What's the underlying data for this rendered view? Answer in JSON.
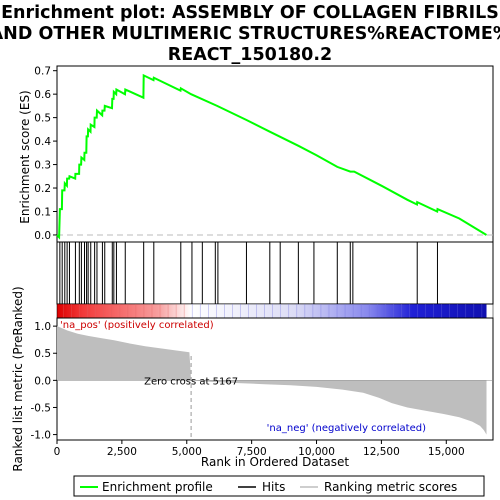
{
  "chart_data": {
    "type": "line",
    "title_lines": [
      "Enrichment plot: ASSEMBLY OF COLLAGEN FIBRILS",
      "AND OTHER MULTIMERIC STRUCTURES%REACTOME%",
      "REACT_150180.2"
    ],
    "xlabel": "Rank in Ordered Dataset",
    "xlim": [
      0,
      16800
    ],
    "x_ticks": [
      0,
      2500,
      5000,
      7500,
      10000,
      12500,
      15000
    ],
    "x_tick_labels": [
      "0",
      "2,500",
      "5,000",
      "7,500",
      "10,000",
      "12,500",
      "15,000"
    ],
    "top_panel": {
      "ylabel": "Enrichment score (ES)",
      "ylim": [
        -0.03,
        0.72
      ],
      "y_ticks": [
        0.0,
        0.1,
        0.2,
        0.3,
        0.4,
        0.5,
        0.6,
        0.7
      ],
      "y_tick_labels": [
        "0.0",
        "0.1",
        "0.2",
        "0.3",
        "0.4",
        "0.5",
        "0.6",
        "0.7"
      ],
      "series_name": "Enrichment profile",
      "series_color": "#00ff00",
      "es_points": [
        [
          0,
          0.0
        ],
        [
          80,
          -0.01
        ],
        [
          110,
          0.11
        ],
        [
          190,
          0.11
        ],
        [
          200,
          0.19
        ],
        [
          290,
          0.19
        ],
        [
          300,
          0.22
        ],
        [
          380,
          0.21
        ],
        [
          390,
          0.24
        ],
        [
          470,
          0.24
        ],
        [
          480,
          0.25
        ],
        [
          700,
          0.24
        ],
        [
          710,
          0.26
        ],
        [
          850,
          0.26
        ],
        [
          860,
          0.3
        ],
        [
          930,
          0.3
        ],
        [
          940,
          0.33
        ],
        [
          1050,
          0.32
        ],
        [
          1060,
          0.35
        ],
        [
          1130,
          0.35
        ],
        [
          1140,
          0.42
        ],
        [
          1190,
          0.42
        ],
        [
          1200,
          0.45
        ],
        [
          1290,
          0.44
        ],
        [
          1300,
          0.47
        ],
        [
          1440,
          0.46
        ],
        [
          1450,
          0.5
        ],
        [
          1530,
          0.5
        ],
        [
          1540,
          0.53
        ],
        [
          1740,
          0.51
        ],
        [
          1750,
          0.53
        ],
        [
          1830,
          0.53
        ],
        [
          1840,
          0.55
        ],
        [
          2120,
          0.54
        ],
        [
          2130,
          0.58
        ],
        [
          2180,
          0.58
        ],
        [
          2190,
          0.61
        ],
        [
          2280,
          0.6
        ],
        [
          2290,
          0.62
        ],
        [
          2620,
          0.6
        ],
        [
          2630,
          0.62
        ],
        [
          3330,
          0.585
        ],
        [
          3340,
          0.68
        ],
        [
          3720,
          0.66
        ],
        [
          3730,
          0.67
        ],
        [
          4760,
          0.615
        ],
        [
          4770,
          0.625
        ],
        [
          5167,
          0.6
        ],
        [
          6170,
          0.55
        ],
        [
          7300,
          0.49
        ],
        [
          8200,
          0.44
        ],
        [
          9300,
          0.38
        ],
        [
          10000,
          0.34
        ],
        [
          10800,
          0.29
        ],
        [
          11300,
          0.27
        ],
        [
          11450,
          0.27
        ],
        [
          12500,
          0.21
        ],
        [
          13500,
          0.15
        ],
        [
          13870,
          0.13
        ],
        [
          13880,
          0.14
        ],
        [
          14650,
          0.1
        ],
        [
          14660,
          0.11
        ],
        [
          15500,
          0.07
        ],
        [
          16550,
          0.0
        ]
      ],
      "hit_ranks": [
        110,
        200,
        300,
        390,
        480,
        710,
        860,
        940,
        1060,
        1140,
        1200,
        1300,
        1450,
        1540,
        1750,
        1840,
        2130,
        2190,
        2290,
        2630,
        3340,
        3730,
        4770,
        5200,
        5600,
        6100,
        6200,
        7300,
        8200,
        8600,
        9300,
        9900,
        10800,
        11300,
        11400,
        13880,
        14660
      ]
    },
    "bottom_panel": {
      "ylabel": "Ranked list metric (PreRanked)",
      "ylim": [
        -1.1,
        1.15
      ],
      "y_ticks": [
        1.0,
        0.5,
        0.0,
        -0.5,
        -1.0
      ],
      "y_tick_labels": [
        "1.0",
        "0.5",
        "0.0",
        "-0.5",
        "-1.0"
      ],
      "metric_points": [
        [
          0,
          1.0
        ],
        [
          150,
          0.97
        ],
        [
          400,
          0.92
        ],
        [
          800,
          0.86
        ],
        [
          1200,
          0.82
        ],
        [
          1700,
          0.78
        ],
        [
          2200,
          0.74
        ],
        [
          2800,
          0.68
        ],
        [
          3400,
          0.63
        ],
        [
          4000,
          0.59
        ],
        [
          4600,
          0.55
        ],
        [
          5100,
          0.52
        ],
        [
          5167,
          0.0
        ],
        [
          6000,
          -0.03
        ],
        [
          7000,
          -0.05
        ],
        [
          8000,
          -0.07
        ],
        [
          9000,
          -0.09
        ],
        [
          10000,
          -0.12
        ],
        [
          11000,
          -0.17
        ],
        [
          11800,
          -0.23
        ],
        [
          12400,
          -0.32
        ],
        [
          12900,
          -0.42
        ],
        [
          13500,
          -0.5
        ],
        [
          14200,
          -0.56
        ],
        [
          14900,
          -0.62
        ],
        [
          15500,
          -0.68
        ],
        [
          16000,
          -0.76
        ],
        [
          16300,
          -0.84
        ],
        [
          16450,
          -0.92
        ],
        [
          16550,
          -1.0
        ]
      ],
      "zero_cross_rank": 5167,
      "zero_cross_label": "Zero cross at 5167",
      "pos_label": "'na_pos' (positively correlated)",
      "neg_label": "'na_neg' (negatively correlated)",
      "pos_color": "#cc0000",
      "neg_color": "#0000cc",
      "fill_color": "#bebebe"
    },
    "legend": [
      {
        "label": "Enrichment profile",
        "color": "#00ff00",
        "kind": "line"
      },
      {
        "label": "Hits",
        "color": "#000000",
        "kind": "line"
      },
      {
        "label": "Ranking metric scores",
        "color": "#bebebe",
        "kind": "line"
      }
    ]
  }
}
